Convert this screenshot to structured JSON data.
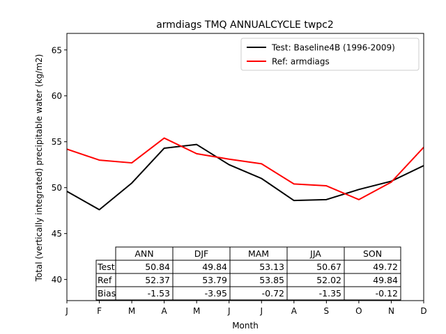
{
  "chart_data": {
    "type": "line",
    "title": "armdiags TMQ ANNUALCYCLE twpc2",
    "xlabel": "Month",
    "ylabel": "Total (vertically integrated) precipitable water (kg/m2)",
    "x_ticks": [
      "J",
      "F",
      "M",
      "A",
      "M",
      "J",
      "J",
      "A",
      "S",
      "O",
      "N",
      "D"
    ],
    "y_ticks": [
      40,
      45,
      50,
      55,
      60,
      65
    ],
    "xlim": [
      1,
      12
    ],
    "ylim": [
      37.7,
      66.8
    ],
    "legend_position": "upper right",
    "series": [
      {
        "name": "Test: Baseline4B (1996-2009)",
        "color": "#000000",
        "values": [
          49.6,
          47.6,
          50.5,
          54.3,
          54.7,
          52.5,
          51.0,
          48.6,
          48.7,
          49.8,
          50.7,
          52.4
        ]
      },
      {
        "name": "Ref: armdiags",
        "color": "#ff0000",
        "values": [
          54.2,
          53.0,
          52.7,
          55.4,
          53.7,
          53.1,
          52.6,
          50.4,
          50.2,
          48.7,
          50.6,
          54.4
        ]
      }
    ],
    "table": {
      "columns": [
        "ANN",
        "DJF",
        "MAM",
        "JJA",
        "SON"
      ],
      "rows": [
        {
          "label": "Test",
          "values": [
            "50.84",
            "49.84",
            "53.13",
            "50.67",
            "49.72"
          ]
        },
        {
          "label": "Ref",
          "values": [
            "52.37",
            "53.79",
            "53.85",
            "52.02",
            "49.84"
          ]
        },
        {
          "label": "Bias",
          "values": [
            "-1.53",
            "-3.95",
            "-0.72",
            "-1.35",
            "-0.12"
          ]
        }
      ]
    }
  }
}
